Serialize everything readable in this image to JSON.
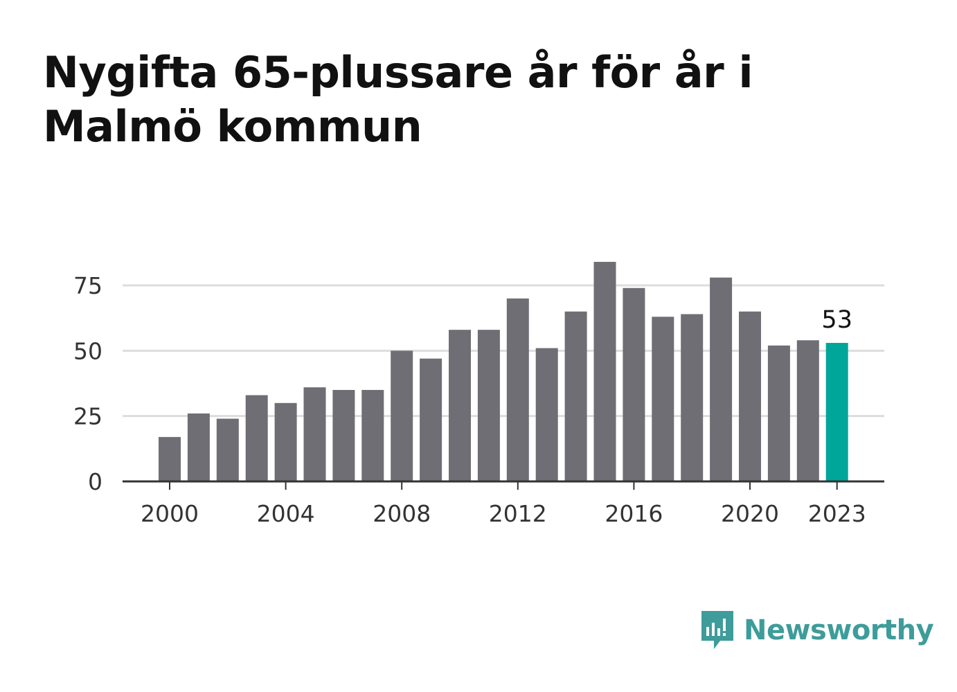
{
  "chart_data": {
    "type": "bar",
    "title": "Nygifta 65-plussare år för år i Malmö kommun",
    "xlabel": "",
    "ylabel": "",
    "categories": [
      "2000",
      "2001",
      "2002",
      "2003",
      "2004",
      "2005",
      "2006",
      "2007",
      "2008",
      "2009",
      "2010",
      "2011",
      "2012",
      "2013",
      "2014",
      "2015",
      "2016",
      "2017",
      "2018",
      "2019",
      "2020",
      "2021",
      "2022",
      "2023"
    ],
    "values": [
      17,
      26,
      24,
      33,
      30,
      36,
      35,
      35,
      50,
      47,
      58,
      58,
      70,
      51,
      65,
      84,
      74,
      63,
      64,
      78,
      65,
      52,
      54,
      53
    ],
    "highlight": {
      "category": "2023",
      "label": "53"
    },
    "ylim": [
      0,
      85
    ],
    "yticks": [
      0,
      25,
      50,
      75
    ],
    "xticks": [
      "2000",
      "2004",
      "2008",
      "2012",
      "2016",
      "2020",
      "2023"
    ],
    "grid": true,
    "colors": {
      "bar": "#6f6e74",
      "highlight": "#00a69a",
      "grid": "#dddddd",
      "axis": "#333333"
    }
  },
  "brand": {
    "name": "Newsworthy",
    "color": "#3e9c9a"
  }
}
